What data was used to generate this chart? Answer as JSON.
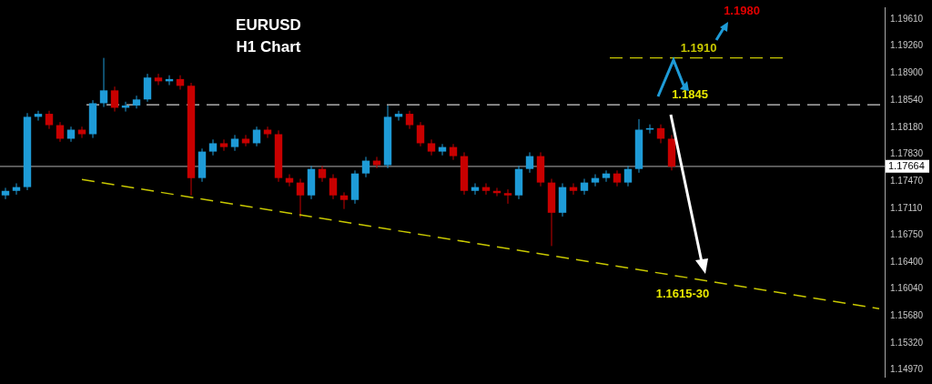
{
  "chart_data": {
    "type": "candlestick",
    "title": "EURUSD",
    "subtitle": "H1 Chart",
    "categories": [
      null,
      null,
      null,
      null,
      null,
      null,
      null,
      null,
      null,
      null,
      null,
      null,
      null,
      null,
      null,
      null,
      null,
      null,
      null,
      null,
      null,
      null,
      null,
      null,
      null,
      null,
      null,
      null,
      null,
      null,
      null,
      null,
      null,
      null,
      null,
      null,
      null,
      null,
      null,
      null,
      null,
      null,
      null,
      null,
      null,
      null,
      null,
      null,
      null,
      null,
      null,
      null,
      null,
      null,
      null,
      null,
      null,
      null,
      null,
      null,
      null,
      null,
      null,
      null,
      null,
      null,
      null,
      null,
      null,
      null,
      null,
      null,
      null,
      null,
      null,
      null,
      null,
      null,
      null,
      null,
      null
    ],
    "ohlc": [
      [
        1.1728,
        1.1738,
        1.1723,
        1.1734
      ],
      [
        1.1734,
        1.1744,
        1.1729,
        1.1739
      ],
      [
        1.1739,
        1.1837,
        1.1735,
        1.1832
      ],
      [
        1.1832,
        1.184,
        1.1827,
        1.1836
      ],
      [
        1.1836,
        1.184,
        1.1816,
        1.1821
      ],
      [
        1.1821,
        1.1825,
        1.1799,
        1.1803
      ],
      [
        1.1803,
        1.1819,
        1.1799,
        1.1815
      ],
      [
        1.1815,
        1.1819,
        1.1804,
        1.1809
      ],
      [
        1.1809,
        1.1854,
        1.1804,
        1.185
      ],
      [
        1.185,
        1.191,
        1.1845,
        1.1867
      ],
      [
        1.1867,
        1.1872,
        1.1839,
        1.1844
      ],
      [
        1.1844,
        1.1852,
        1.1839,
        1.1847
      ],
      [
        1.1847,
        1.186,
        1.1843,
        1.1855
      ],
      [
        1.1855,
        1.1889,
        1.1852,
        1.1884
      ],
      [
        1.1884,
        1.1889,
        1.1874,
        1.1879
      ],
      [
        1.1879,
        1.1887,
        1.1874,
        1.1882
      ],
      [
        1.1882,
        1.1887,
        1.1868,
        1.1873
      ],
      [
        1.1873,
        1.1877,
        1.1728,
        1.1751
      ],
      [
        1.1751,
        1.179,
        1.1746,
        1.1786
      ],
      [
        1.1786,
        1.1802,
        1.1781,
        1.1797
      ],
      [
        1.1797,
        1.1802,
        1.1787,
        1.1792
      ],
      [
        1.1792,
        1.1808,
        1.1787,
        1.1803
      ],
      [
        1.1803,
        1.1808,
        1.1793,
        1.1797
      ],
      [
        1.1797,
        1.1819,
        1.1793,
        1.1815
      ],
      [
        1.1815,
        1.1819,
        1.1804,
        1.1809
      ],
      [
        1.1809,
        1.1814,
        1.1746,
        1.1751
      ],
      [
        1.1751,
        1.1756,
        1.174,
        1.1745
      ],
      [
        1.1745,
        1.175,
        1.1699,
        1.1728
      ],
      [
        1.1728,
        1.1767,
        1.1723,
        1.1763
      ],
      [
        1.1763,
        1.1767,
        1.1746,
        1.1751
      ],
      [
        1.1751,
        1.1756,
        1.1723,
        1.1728
      ],
      [
        1.1728,
        1.1732,
        1.171,
        1.1722
      ],
      [
        1.1722,
        1.1761,
        1.1717,
        1.1757
      ],
      [
        1.1757,
        1.1779,
        1.1752,
        1.1774
      ],
      [
        1.1774,
        1.1779,
        1.1764,
        1.1768
      ],
      [
        1.1768,
        1.1847,
        1.1764,
        1.1832
      ],
      [
        1.1832,
        1.184,
        1.1827,
        1.1836
      ],
      [
        1.1836,
        1.184,
        1.1816,
        1.1821
      ],
      [
        1.1821,
        1.1825,
        1.1793,
        1.1797
      ],
      [
        1.1797,
        1.1802,
        1.1781,
        1.1786
      ],
      [
        1.1786,
        1.1796,
        1.1781,
        1.1792
      ],
      [
        1.1792,
        1.1796,
        1.1775,
        1.178
      ],
      [
        1.178,
        1.1785,
        1.1729,
        1.1734
      ],
      [
        1.1734,
        1.1744,
        1.1729,
        1.1739
      ],
      [
        1.1739,
        1.1744,
        1.1729,
        1.1734
      ],
      [
        1.1734,
        1.1738,
        1.1727,
        1.1731
      ],
      [
        1.1731,
        1.1736,
        1.1717,
        1.1728
      ],
      [
        1.1728,
        1.1767,
        1.1723,
        1.1763
      ],
      [
        1.1763,
        1.1785,
        1.1758,
        1.178
      ],
      [
        1.178,
        1.1785,
        1.174,
        1.1745
      ],
      [
        1.1745,
        1.175,
        1.1661,
        1.1705
      ],
      [
        1.1705,
        1.1744,
        1.17,
        1.1739
      ],
      [
        1.1739,
        1.1744,
        1.1729,
        1.1734
      ],
      [
        1.1734,
        1.175,
        1.1729,
        1.1745
      ],
      [
        1.1745,
        1.1756,
        1.174,
        1.1751
      ],
      [
        1.1751,
        1.1761,
        1.1746,
        1.1757
      ],
      [
        1.1757,
        1.1761,
        1.174,
        1.1745
      ],
      [
        1.1745,
        1.1767,
        1.174,
        1.1763
      ],
      [
        1.1763,
        1.1829,
        1.1758,
        1.1815
      ],
      [
        1.1815,
        1.1822,
        1.181,
        1.1817
      ],
      [
        1.1817,
        1.1822,
        1.1797,
        1.1803
      ],
      [
        1.1803,
        1.1808,
        1.1761,
        1.1766
      ],
      null,
      null,
      null,
      null,
      null,
      null,
      null,
      null,
      null,
      null,
      null,
      null,
      null,
      null,
      null,
      null,
      null,
      null,
      null
    ],
    "colors": [
      "#1e9bd7",
      "#1e9bd7",
      "#1e9bd7",
      "#1e9bd7",
      "#c80000",
      "#c80000",
      "#1e9bd7",
      "#c80000",
      "#1e9bd7",
      "#1e9bd7",
      "#c80000",
      "#1e9bd7",
      "#1e9bd7",
      "#1e9bd7",
      "#c80000",
      "#1e9bd7",
      "#c80000",
      "#c80000",
      "#1e9bd7",
      "#1e9bd7",
      "#c80000",
      "#1e9bd7",
      "#c80000",
      "#1e9bd7",
      "#c80000",
      "#c80000",
      "#c80000",
      "#c80000",
      "#1e9bd7",
      "#c80000",
      "#c80000",
      "#c80000",
      "#1e9bd7",
      "#1e9bd7",
      "#c80000",
      "#1e9bd7",
      "#1e9bd7",
      "#c80000",
      "#c80000",
      "#c80000",
      "#1e9bd7",
      "#c80000",
      "#c80000",
      "#1e9bd7",
      "#c80000",
      "#c80000",
      "#c80000",
      "#1e9bd7",
      "#1e9bd7",
      "#c80000",
      "#c80000",
      "#1e9bd7",
      "#c80000",
      "#1e9bd7",
      "#1e9bd7",
      "#1e9bd7",
      "#c80000",
      "#1e9bd7",
      "#1e9bd7",
      "#1e9bd7",
      "#c80000",
      "#c80000",
      null,
      null,
      null,
      null,
      null,
      null,
      null,
      null,
      null,
      null,
      null,
      null,
      null,
      null,
      null,
      null,
      null,
      null,
      null
    ],
    "series": [
      {
        "type": "line",
        "color": "#c8c800",
        "line_style": "dashed",
        "values": [
          null,
          null,
          null,
          null,
          null,
          null,
          null,
          1.1749,
          null,
          null,
          null,
          null,
          null,
          null,
          null,
          null,
          null,
          null,
          null,
          null,
          null,
          null,
          null,
          null,
          null,
          null,
          null,
          null,
          null,
          null,
          null,
          null,
          null,
          null,
          null,
          null,
          null,
          null,
          null,
          null,
          null,
          null,
          null,
          null,
          null,
          null,
          null,
          null,
          null,
          null,
          null,
          null,
          null,
          null,
          null,
          null,
          null,
          null,
          null,
          null,
          null,
          null,
          null,
          null,
          null,
          null,
          null,
          null,
          null,
          null,
          null,
          null,
          null,
          null,
          null,
          null,
          null,
          null,
          null,
          null,
          1.1578
        ]
      }
    ],
    "ylim": [
      1.1488,
      1.1977
    ],
    "yticks": [
      {
        "value": 1.1961,
        "label": "1.19610"
      },
      {
        "value": 1.1926,
        "label": "1.19260"
      },
      {
        "value": 1.189,
        "label": "1.18900"
      },
      {
        "value": 1.1854,
        "label": "1.18540"
      },
      {
        "value": 1.1818,
        "label": "1.18180"
      },
      {
        "value": 1.1783,
        "label": "1.17830"
      },
      {
        "value": 1.1747,
        "label": "1.17470"
      },
      {
        "value": 1.1711,
        "label": "1.17110"
      },
      {
        "value": 1.1675,
        "label": "1.16750"
      },
      {
        "value": 1.164,
        "label": "1.16400"
      },
      {
        "value": 1.1604,
        "label": "1.16040"
      },
      {
        "value": 1.1568,
        "label": "1.15680"
      },
      {
        "value": 1.1532,
        "label": "1.15320"
      },
      {
        "value": 1.1497,
        "label": "1.14970"
      }
    ],
    "ref_lines": [
      {
        "axis": "y",
        "value": 1.1848,
        "color": "#d0d0d0",
        "line_style": "dashed"
      },
      {
        "axis": "y",
        "value": 1.191,
        "label": "1.1910",
        "color": "#c8c800",
        "line_style": "dashed"
      },
      {
        "axis": "y",
        "value": 1.17664,
        "label": "1.17664",
        "color": "#8c8c8c",
        "line_style": "solid"
      }
    ],
    "annotations": [
      {
        "text": "1.1980"
      },
      {
        "text": "1.1845",
        "y": 1.1845
      },
      {
        "text": "1.1615-30",
        "y": 1.1622
      }
    ],
    "grid": false,
    "legend": false
  }
}
